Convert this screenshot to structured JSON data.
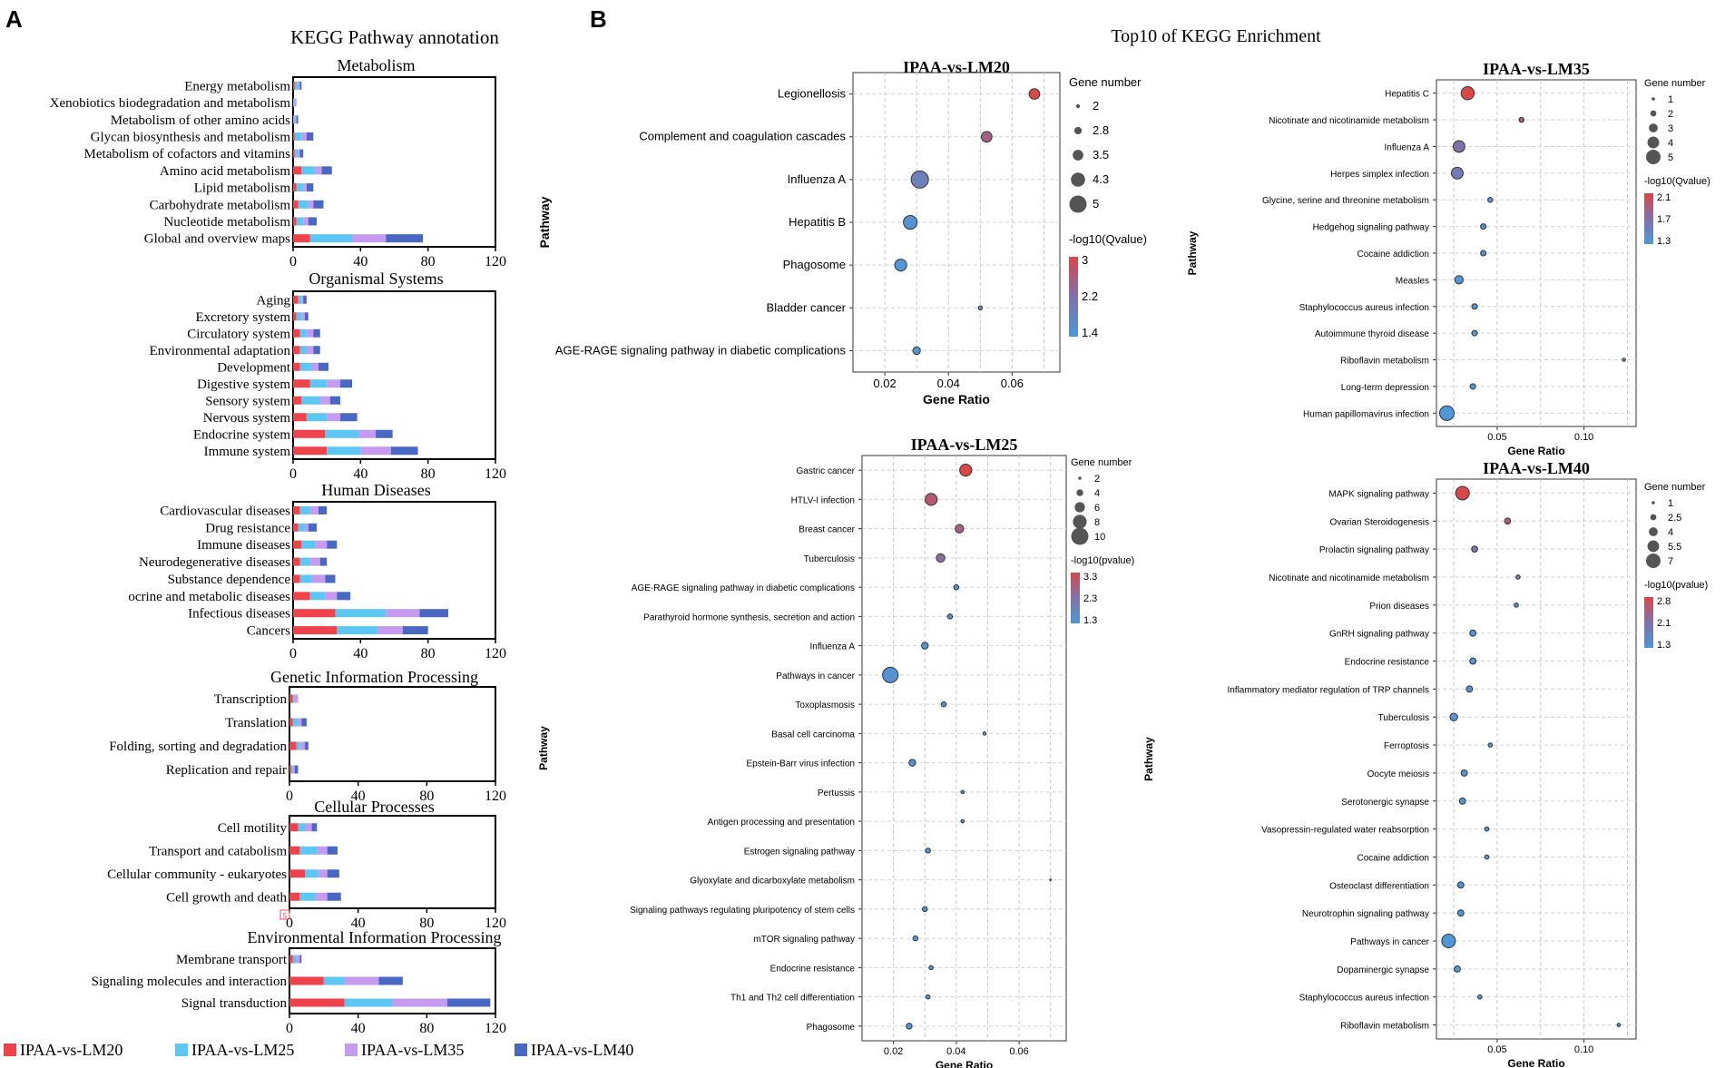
{
  "colors": {
    "lm20": "#f0424a",
    "lm25": "#5cc7f2",
    "lm35": "#c49bee",
    "lm40": "#4868c4",
    "grad_high": "#d9474b",
    "grad_low": "#4f97d8"
  },
  "panel_a": {
    "label": "A",
    "title": "KEGG Pathway annotation",
    "legend": [
      "IPAA-vs-LM20",
      "IPAA-vs-LM25",
      "IPAA-vs-LM35",
      "IPAA-vs-LM40"
    ],
    "overflow_marker": "5"
  },
  "panel_b": {
    "label": "B",
    "title": "Top10 of KEGG Enrichment"
  },
  "chart_data": [
    {
      "type": "bar",
      "stacked": true,
      "orientation": "horizontal",
      "title": "Metabolism",
      "xlim": [
        0,
        120
      ],
      "xticks": [
        0,
        40,
        80,
        120
      ],
      "series_names": [
        "IPAA-vs-LM20",
        "IPAA-vs-LM25",
        "IPAA-vs-LM35",
        "IPAA-vs-LM40"
      ],
      "categories": [
        "Energy metabolism",
        "Xenobiotics biodegradation and metabolism",
        "Metabolism of other amino acids",
        "Glycan biosynthesis and metabolism",
        "Metabolism of cofactors and vitamins",
        "Amino acid metabolism",
        "Lipid metabolism",
        "Carbohydrate metabolism",
        "Nucleotide metabolism",
        "Global and overview maps"
      ],
      "values": [
        [
          1,
          2,
          1,
          1
        ],
        [
          0,
          1,
          1,
          0
        ],
        [
          0,
          1,
          1,
          1
        ],
        [
          1,
          4,
          3,
          4
        ],
        [
          1,
          2,
          1,
          2
        ],
        [
          5,
          8,
          4,
          6
        ],
        [
          2,
          4,
          2,
          4
        ],
        [
          3,
          6,
          3,
          6
        ],
        [
          2,
          4,
          3,
          5
        ],
        [
          10,
          25,
          20,
          22
        ]
      ]
    },
    {
      "type": "bar",
      "stacked": true,
      "orientation": "horizontal",
      "title": "Organismal Systems",
      "xlim": [
        0,
        120
      ],
      "xticks": [
        0,
        40,
        80,
        120
      ],
      "series_names": [
        "IPAA-vs-LM20",
        "IPAA-vs-LM25",
        "IPAA-vs-LM35",
        "IPAA-vs-LM40"
      ],
      "categories": [
        "Aging",
        "Excretory system",
        "Circulatory system",
        "Environmental adaptation",
        "Development",
        "Digestive system",
        "Sensory system",
        "Nervous system",
        "Endocrine system",
        "Immune system"
      ],
      "values": [
        [
          3,
          2,
          1,
          2
        ],
        [
          2,
          3,
          2,
          2
        ],
        [
          4,
          4,
          4,
          4
        ],
        [
          4,
          4,
          4,
          4
        ],
        [
          4,
          7,
          4,
          6
        ],
        [
          10,
          10,
          8,
          7
        ],
        [
          5,
          11,
          6,
          6
        ],
        [
          8,
          12,
          8,
          10
        ],
        [
          19,
          20,
          10,
          10
        ],
        [
          20,
          20,
          18,
          16
        ]
      ]
    },
    {
      "type": "bar",
      "stacked": true,
      "orientation": "horizontal",
      "title": "Human Diseases",
      "xlim": [
        0,
        120
      ],
      "xticks": [
        0,
        40,
        80,
        120
      ],
      "series_names": [
        "IPAA-vs-LM20",
        "IPAA-vs-LM25",
        "IPAA-vs-LM35",
        "IPAA-vs-LM40"
      ],
      "categories": [
        "Cardiovascular diseases",
        "Drug resistance",
        "Immune diseases",
        "Neurodegenerative diseases",
        "Substance dependence",
        "ocrine and metabolic diseases",
        "Infectious diseases",
        "Cancers"
      ],
      "values": [
        [
          4,
          6,
          5,
          5
        ],
        [
          3,
          4,
          2,
          5
        ],
        [
          5,
          8,
          7,
          6
        ],
        [
          4,
          6,
          6,
          4
        ],
        [
          4,
          7,
          8,
          6
        ],
        [
          10,
          9,
          7,
          8
        ],
        [
          25,
          30,
          20,
          17
        ],
        [
          26,
          24,
          15,
          15
        ]
      ]
    },
    {
      "type": "bar",
      "stacked": true,
      "orientation": "horizontal",
      "title": "Genetic Information Processing",
      "xlim": [
        0,
        120
      ],
      "xticks": [
        0,
        40,
        80,
        120
      ],
      "series_names": [
        "IPAA-vs-LM20",
        "IPAA-vs-LM25",
        "IPAA-vs-LM35",
        "IPAA-vs-LM40"
      ],
      "categories": [
        "Transcription",
        "Translation",
        "Folding, sorting and degradation",
        "Replication and repair"
      ],
      "values": [
        [
          2,
          1,
          2,
          0
        ],
        [
          2,
          3,
          2,
          3
        ],
        [
          4,
          2,
          3,
          2
        ],
        [
          1,
          1,
          1,
          2
        ]
      ]
    },
    {
      "type": "bar",
      "stacked": true,
      "orientation": "horizontal",
      "title": "Cellular Processes",
      "xlim": [
        0,
        120
      ],
      "xticks": [
        0,
        40,
        80,
        120
      ],
      "series_names": [
        "IPAA-vs-LM20",
        "IPAA-vs-LM25",
        "IPAA-vs-LM35",
        "IPAA-vs-LM40"
      ],
      "categories": [
        "Cell motility",
        "Transport and catabolism",
        "Cellular community - eukaryotes",
        "Cell growth and death"
      ],
      "values": [
        [
          5,
          4,
          4,
          3
        ],
        [
          6,
          10,
          6,
          6
        ],
        [
          9,
          8,
          5,
          7
        ],
        [
          6,
          9,
          7,
          8
        ]
      ]
    },
    {
      "type": "bar",
      "stacked": true,
      "orientation": "horizontal",
      "title": "Environmental  Information Processing",
      "xlim": [
        0,
        120
      ],
      "xticks": [
        0,
        40,
        80,
        120
      ],
      "series_names": [
        "IPAA-vs-LM20",
        "IPAA-vs-LM25",
        "IPAA-vs-LM35",
        "IPAA-vs-LM40"
      ],
      "categories": [
        "Membrane transport",
        "Signaling molecules and interaction",
        "Signal transduction"
      ],
      "values": [
        [
          2,
          2,
          2,
          1
        ],
        [
          20,
          12,
          20,
          14
        ],
        [
          32,
          28,
          32,
          25
        ]
      ]
    },
    {
      "type": "scatter",
      "subtype": "bubble",
      "title": "IPAA-vs-LM20",
      "xlabel": "Gene Ratio",
      "ylabel": "Pathway",
      "xlim": [
        0.01,
        0.075
      ],
      "xticks": [
        "0.02",
        "0.04",
        "0.06"
      ],
      "size_title": "Gene number",
      "size_legend": [
        "2",
        "2.8",
        "3.5",
        "4.3",
        "5"
      ],
      "size_range": [
        2,
        5
      ],
      "color_title": "-log10(Qvalue)",
      "color_legend": [
        "3",
        "2.2",
        "1.4"
      ],
      "color_range": [
        1.4,
        3
      ],
      "points": [
        {
          "pathway": "Legionellosis",
          "ratio": 0.067,
          "size": 3.5,
          "color": 3.0
        },
        {
          "pathway": "Complement and coagulation cascades",
          "ratio": 0.052,
          "size": 3.5,
          "color": 2.5
        },
        {
          "pathway": "Influenza A",
          "ratio": 0.031,
          "size": 5,
          "color": 1.9
        },
        {
          "pathway": "Hepatitis B",
          "ratio": 0.028,
          "size": 4.2,
          "color": 1.5
        },
        {
          "pathway": "Phagosome",
          "ratio": 0.025,
          "size": 3.8,
          "color": 1.4
        },
        {
          "pathway": "Bladder cancer",
          "ratio": 0.05,
          "size": 2,
          "color": 1.5
        },
        {
          "pathway": "AGE-RAGE signaling pathway in diabetic complications",
          "ratio": 0.03,
          "size": 2.8,
          "color": 1.4
        }
      ]
    },
    {
      "type": "scatter",
      "subtype": "bubble",
      "title": "IPAA-vs-LM35",
      "xlabel": "Gene Ratio",
      "ylabel": "Pathway",
      "xlim": [
        0.015,
        0.13
      ],
      "xticks": [
        "0.05",
        "0.10"
      ],
      "size_title": "Gene number",
      "size_legend": [
        "1",
        "2",
        "3",
        "4",
        "5"
      ],
      "size_range": [
        1,
        5
      ],
      "color_title": "-log10(Qvalue)",
      "color_legend": [
        "2.1",
        "1.7",
        "1.3"
      ],
      "color_range": [
        1.3,
        2.1
      ],
      "points": [
        {
          "pathway": "Hepatitis C",
          "ratio": 0.033,
          "size": 4.5,
          "color": 2.1
        },
        {
          "pathway": "Nicotinate and nicotinamide metabolism",
          "ratio": 0.064,
          "size": 1.6,
          "color": 1.9
        },
        {
          "pathway": "Influenza A",
          "ratio": 0.028,
          "size": 4,
          "color": 1.7
        },
        {
          "pathway": "Herpes simplex infection",
          "ratio": 0.027,
          "size": 4,
          "color": 1.6
        },
        {
          "pathway": "Glycine, serine and threonine metabolism",
          "ratio": 0.046,
          "size": 1.6,
          "color": 1.35
        },
        {
          "pathway": "Hedgehog signaling pathway",
          "ratio": 0.042,
          "size": 1.8,
          "color": 1.35
        },
        {
          "pathway": "Cocaine addiction",
          "ratio": 0.042,
          "size": 1.8,
          "color": 1.35
        },
        {
          "pathway": "Measles",
          "ratio": 0.028,
          "size": 2.8,
          "color": 1.3
        },
        {
          "pathway": "Staphylococcus aureus infection",
          "ratio": 0.037,
          "size": 1.8,
          "color": 1.3
        },
        {
          "pathway": "Autoimmune thyroid disease",
          "ratio": 0.037,
          "size": 1.8,
          "color": 1.3
        },
        {
          "pathway": "Riboflavin metabolism",
          "ratio": 0.123,
          "size": 1,
          "color": 1.35
        },
        {
          "pathway": "Long-term depression",
          "ratio": 0.036,
          "size": 1.8,
          "color": 1.3
        },
        {
          "pathway": "Human papillomavirus infection",
          "ratio": 0.021,
          "size": 5,
          "color": 1.3
        }
      ]
    },
    {
      "type": "scatter",
      "subtype": "bubble",
      "title": "IPAA-vs-LM25",
      "xlabel": "Gene Ratio",
      "ylabel": "Pathway",
      "xlim": [
        0.01,
        0.075
      ],
      "xticks": [
        "0.02",
        "0.04",
        "0.06"
      ],
      "size_title": "Gene number",
      "size_legend": [
        "2",
        "4",
        "6",
        "8",
        "10"
      ],
      "size_range": [
        2,
        10
      ],
      "color_title": "-log10(pvalue)",
      "color_legend": [
        "3.3",
        "2.3",
        "1.3"
      ],
      "color_range": [
        1.3,
        3.3
      ],
      "points": [
        {
          "pathway": "Gastric cancer",
          "ratio": 0.043,
          "size": 7,
          "color": 3.3
        },
        {
          "pathway": "HTLV-I infection",
          "ratio": 0.032,
          "size": 7,
          "color": 2.9
        },
        {
          "pathway": "Breast cancer",
          "ratio": 0.041,
          "size": 5,
          "color": 2.7
        },
        {
          "pathway": "Tuberculosis",
          "ratio": 0.035,
          "size": 5,
          "color": 2.4
        },
        {
          "pathway": "AGE-RAGE signaling pathway in diabetic complications",
          "ratio": 0.04,
          "size": 3,
          "color": 1.5
        },
        {
          "pathway": "Parathyroid hormone synthesis, secretion and action",
          "ratio": 0.038,
          "size": 3,
          "color": 1.5
        },
        {
          "pathway": "Influenza A",
          "ratio": 0.03,
          "size": 4,
          "color": 1.4
        },
        {
          "pathway": "Pathways in cancer",
          "ratio": 0.019,
          "size": 9,
          "color": 1.4
        },
        {
          "pathway": "Toxoplasmosis",
          "ratio": 0.036,
          "size": 3,
          "color": 1.4
        },
        {
          "pathway": "Basal cell carcinoma",
          "ratio": 0.049,
          "size": 2,
          "color": 1.4
        },
        {
          "pathway": "Epstein-Barr virus infection",
          "ratio": 0.026,
          "size": 4,
          "color": 1.4
        },
        {
          "pathway": "Pertussis",
          "ratio": 0.042,
          "size": 2,
          "color": 1.35
        },
        {
          "pathway": "Antigen processing and presentation",
          "ratio": 0.042,
          "size": 2,
          "color": 1.35
        },
        {
          "pathway": "Estrogen signaling pathway",
          "ratio": 0.031,
          "size": 3,
          "color": 1.35
        },
        {
          "pathway": "Glyoxylate and dicarboxylate metabolism",
          "ratio": 0.07,
          "size": 1,
          "color": 1.3
        },
        {
          "pathway": "Signaling pathways regulating pluripotency of stem cells",
          "ratio": 0.03,
          "size": 3,
          "color": 1.3
        },
        {
          "pathway": "mTOR signaling pathway",
          "ratio": 0.027,
          "size": 3,
          "color": 1.3
        },
        {
          "pathway": "Endocrine resistance",
          "ratio": 0.032,
          "size": 2.5,
          "color": 1.3
        },
        {
          "pathway": "Th1 and Th2 cell differentiation",
          "ratio": 0.031,
          "size": 2.5,
          "color": 1.3
        },
        {
          "pathway": "Phagosome",
          "ratio": 0.025,
          "size": 3.5,
          "color": 1.3
        }
      ]
    },
    {
      "type": "scatter",
      "subtype": "bubble",
      "title": "IPAA-vs-LM40",
      "xlabel": "Gene Ratio",
      "ylabel": "Pathway",
      "xlim": [
        0.015,
        0.13
      ],
      "xticks": [
        "0.05",
        "0.10"
      ],
      "size_title": "Gene number",
      "size_legend": [
        "1",
        "2.5",
        "4",
        "5.5",
        "7"
      ],
      "size_range": [
        1,
        7
      ],
      "color_title": "-log10(pvalue)",
      "color_legend": [
        "2.8",
        "2.1",
        "1.3"
      ],
      "color_range": [
        1.3,
        2.8
      ],
      "points": [
        {
          "pathway": "MAPK signaling pathway",
          "ratio": 0.03,
          "size": 6.5,
          "color": 2.8
        },
        {
          "pathway": "Ovarian Steroidogenesis",
          "ratio": 0.056,
          "size": 2.5,
          "color": 2.5
        },
        {
          "pathway": "Prolactin signaling pathway",
          "ratio": 0.037,
          "size": 2.5,
          "color": 1.9
        },
        {
          "pathway": "Nicotinate and nicotinamide metabolism",
          "ratio": 0.062,
          "size": 1.5,
          "color": 1.6
        },
        {
          "pathway": "Prion diseases",
          "ratio": 0.061,
          "size": 1.5,
          "color": 1.5
        },
        {
          "pathway": "GnRH signaling pathway",
          "ratio": 0.036,
          "size": 2.6,
          "color": 1.4
        },
        {
          "pathway": "Endocrine resistance",
          "ratio": 0.036,
          "size": 2.6,
          "color": 1.4
        },
        {
          "pathway": "Inflammatory mediator regulation of TRP channels",
          "ratio": 0.034,
          "size": 2.6,
          "color": 1.4
        },
        {
          "pathway": "Tuberculosis",
          "ratio": 0.025,
          "size": 3.3,
          "color": 1.35
        },
        {
          "pathway": "Ferroptosis",
          "ratio": 0.046,
          "size": 1.5,
          "color": 1.35
        },
        {
          "pathway": "Oocyte meiosis",
          "ratio": 0.031,
          "size": 2.6,
          "color": 1.35
        },
        {
          "pathway": "Serotonergic synapse",
          "ratio": 0.03,
          "size": 2.6,
          "color": 1.35
        },
        {
          "pathway": "Vasopressin-regulated water reabsorption",
          "ratio": 0.044,
          "size": 1.5,
          "color": 1.35
        },
        {
          "pathway": "Cocaine addiction",
          "ratio": 0.044,
          "size": 1.5,
          "color": 1.35
        },
        {
          "pathway": "Osteoclast differentiation",
          "ratio": 0.029,
          "size": 2.6,
          "color": 1.3
        },
        {
          "pathway": "Neurotrophin signaling pathway",
          "ratio": 0.029,
          "size": 2.6,
          "color": 1.3
        },
        {
          "pathway": "Pathways in cancer",
          "ratio": 0.022,
          "size": 6.5,
          "color": 1.3
        },
        {
          "pathway": "Dopaminergic synapse",
          "ratio": 0.027,
          "size": 2.6,
          "color": 1.3
        },
        {
          "pathway": "Staphylococcus aureus infection",
          "ratio": 0.04,
          "size": 1.5,
          "color": 1.3
        },
        {
          "pathway": "Riboflavin metabolism",
          "ratio": 0.12,
          "size": 1,
          "color": 1.3
        }
      ]
    }
  ]
}
